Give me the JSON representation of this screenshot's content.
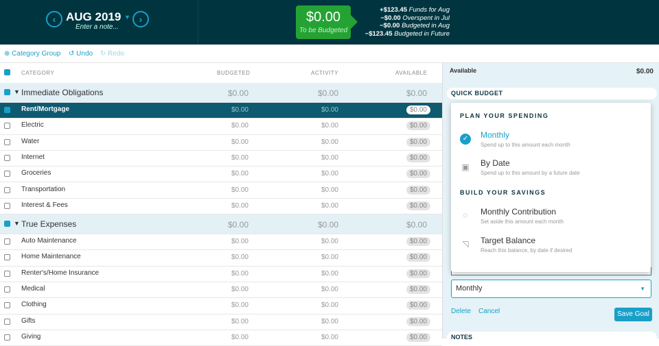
{
  "header": {
    "month": "AUG 2019",
    "note_placeholder": "Enter a note...",
    "to_be_budgeted": "$0.00",
    "to_be_budgeted_label": "To be Budgeted",
    "summary": [
      {
        "amount": "+$123.45",
        "label": "Funds for Aug"
      },
      {
        "amount": "−$0.00",
        "label": "Overspent in Jul"
      },
      {
        "amount": "−$0.00",
        "label": "Budgeted in Aug"
      },
      {
        "amount": "−$123.45",
        "label": "Budgeted in Future"
      }
    ]
  },
  "toolbar": {
    "add_group": "Category Group",
    "undo": "Undo",
    "redo": "Redo"
  },
  "columns": {
    "category": "CATEGORY",
    "budgeted": "BUDGETED",
    "activity": "ACTIVITY",
    "available": "AVAILABLE"
  },
  "rows": [
    {
      "type": "group",
      "name": "Immediate Obligations",
      "budgeted": "$0.00",
      "activity": "$0.00",
      "available": "$0.00"
    },
    {
      "type": "item",
      "name": "Rent/Mortgage",
      "budgeted": "$0.00",
      "activity": "$0.00",
      "available": "$0.00",
      "selected": true
    },
    {
      "type": "item",
      "name": "Electric",
      "budgeted": "$0.00",
      "activity": "$0.00",
      "available": "$0.00"
    },
    {
      "type": "item",
      "name": "Water",
      "budgeted": "$0.00",
      "activity": "$0.00",
      "available": "$0.00"
    },
    {
      "type": "item",
      "name": "Internet",
      "budgeted": "$0.00",
      "activity": "$0.00",
      "available": "$0.00"
    },
    {
      "type": "item",
      "name": "Groceries",
      "budgeted": "$0.00",
      "activity": "$0.00",
      "available": "$0.00"
    },
    {
      "type": "item",
      "name": "Transportation",
      "budgeted": "$0.00",
      "activity": "$0.00",
      "available": "$0.00"
    },
    {
      "type": "item",
      "name": "Interest & Fees",
      "budgeted": "$0.00",
      "activity": "$0.00",
      "available": "$0.00"
    },
    {
      "type": "group",
      "name": "True Expenses",
      "budgeted": "$0.00",
      "activity": "$0.00",
      "available": "$0.00"
    },
    {
      "type": "item",
      "name": "Auto Maintenance",
      "budgeted": "$0.00",
      "activity": "$0.00",
      "available": "$0.00"
    },
    {
      "type": "item",
      "name": "Home Maintenance",
      "budgeted": "$0.00",
      "activity": "$0.00",
      "available": "$0.00"
    },
    {
      "type": "item",
      "name": "Renter's/Home Insurance",
      "budgeted": "$0.00",
      "activity": "$0.00",
      "available": "$0.00"
    },
    {
      "type": "item",
      "name": "Medical",
      "budgeted": "$0.00",
      "activity": "$0.00",
      "available": "$0.00"
    },
    {
      "type": "item",
      "name": "Clothing",
      "budgeted": "$0.00",
      "activity": "$0.00",
      "available": "$0.00"
    },
    {
      "type": "item",
      "name": "Gifts",
      "budgeted": "$0.00",
      "activity": "$0.00",
      "available": "$0.00"
    },
    {
      "type": "item",
      "name": "Giving",
      "budgeted": "$0.00",
      "activity": "$0.00",
      "available": "$0.00"
    }
  ],
  "panel": {
    "available_label": "Available",
    "available_value": "$0.00",
    "quick_budget": "QUICK BUDGET",
    "notes": "NOTES",
    "goal_type": "Monthly",
    "delete": "Delete",
    "cancel": "Cancel",
    "save": "Save Goal",
    "menu": {
      "plan_header": "PLAN YOUR SPENDING",
      "savings_header": "BUILD YOUR SAVINGS",
      "options": [
        {
          "title": "Monthly",
          "desc": "Spend up to this amount each month",
          "icon": "check-circle-icon",
          "selected": true
        },
        {
          "title": "By Date",
          "desc": "Spend up to this amount by a future date",
          "icon": "calendar-icon"
        },
        {
          "title": "Monthly Contribution",
          "desc": "Set aside this amount each month",
          "icon": "piggy-bank-icon"
        },
        {
          "title": "Target Balance",
          "desc": "Reach this balance, by date if desired",
          "icon": "chart-icon"
        }
      ]
    }
  },
  "colors": {
    "header_bg": "#003540",
    "accent": "#19a0c8",
    "green": "#24a334",
    "selected_row": "#0e5a70"
  }
}
